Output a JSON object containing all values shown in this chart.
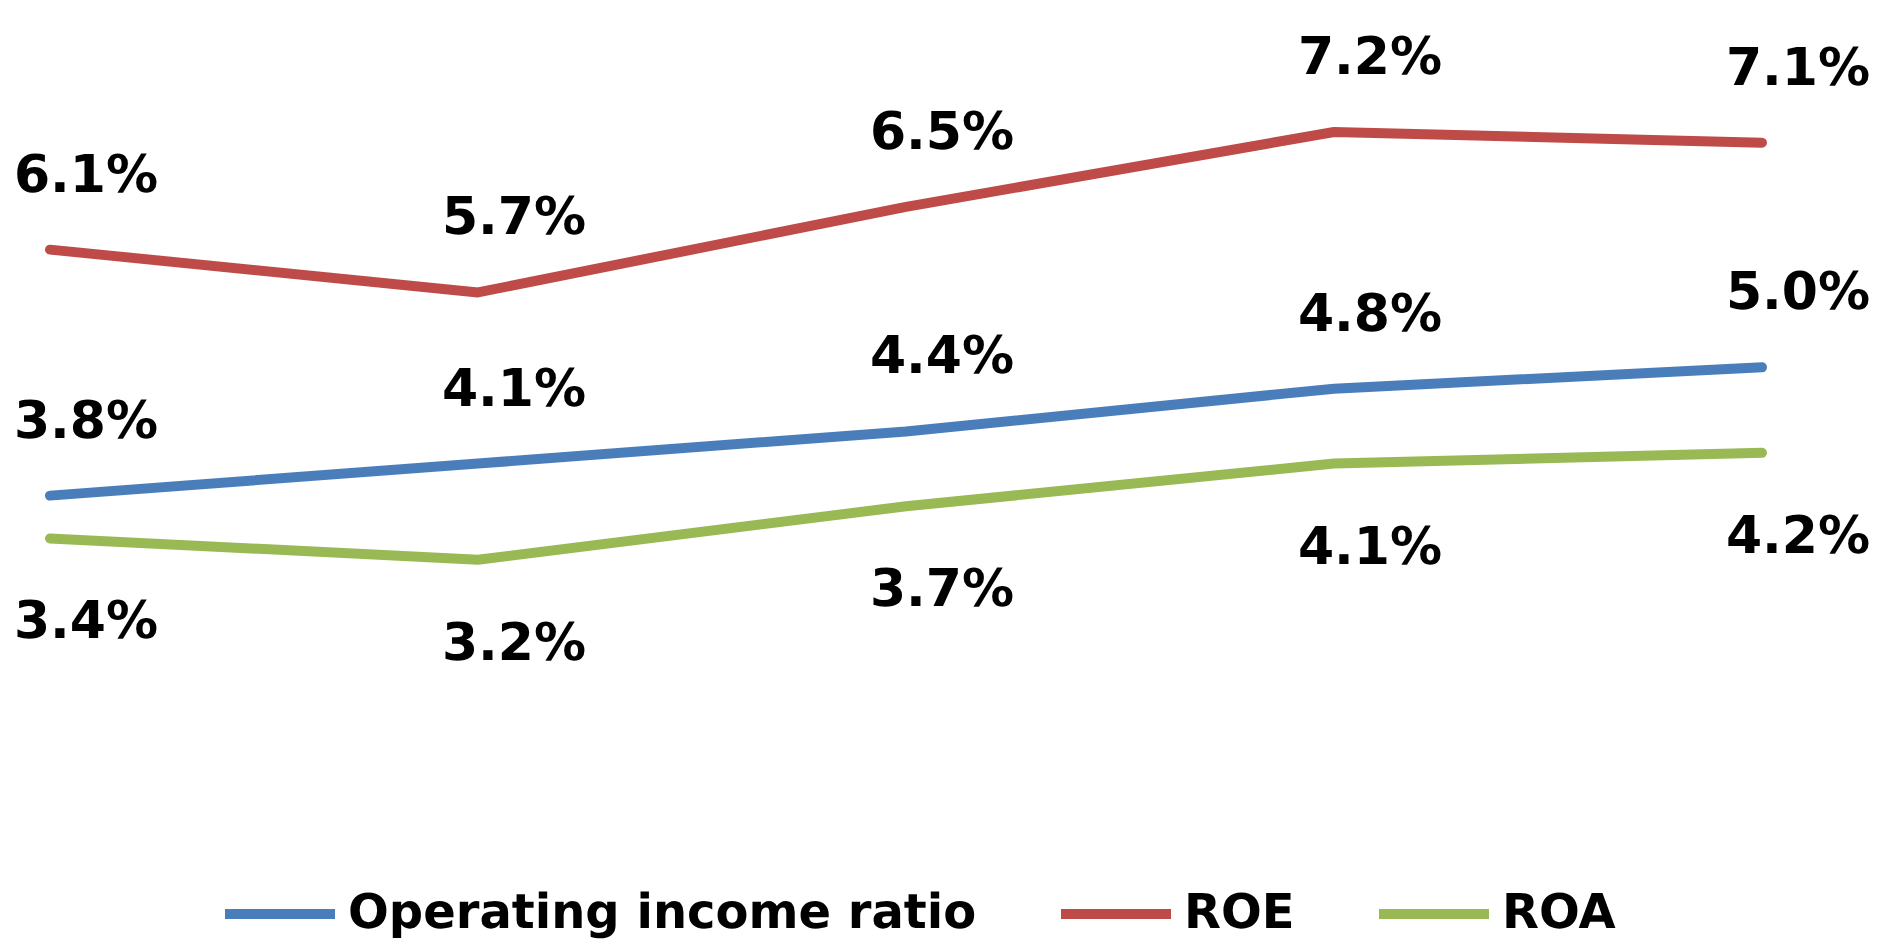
{
  "chart_data": {
    "type": "line",
    "categories": [
      null,
      null,
      null,
      null,
      null
    ],
    "series": [
      {
        "name": "Operating income ratio",
        "color": "#4a7ebb",
        "values": [
          3.8,
          4.1,
          4.4,
          4.8,
          5.0
        ],
        "value_labels": [
          "3.8%",
          "4.1%",
          "4.4%",
          "4.8%",
          "5.0%"
        ]
      },
      {
        "name": "ROE",
        "color": "#be4b48",
        "values": [
          6.1,
          5.7,
          6.5,
          7.2,
          7.1
        ],
        "value_labels": [
          "6.1%",
          "5.7%",
          "6.5%",
          "7.2%",
          "7.1%"
        ]
      },
      {
        "name": "ROA",
        "color": "#98b954",
        "values": [
          3.4,
          3.2,
          3.7,
          4.1,
          4.2
        ],
        "value_labels": [
          "3.4%",
          "3.2%",
          "3.7%",
          "4.1%",
          "4.2%"
        ]
      }
    ],
    "legend": "bottom",
    "tick_labels": false,
    "line_style": "solid"
  }
}
